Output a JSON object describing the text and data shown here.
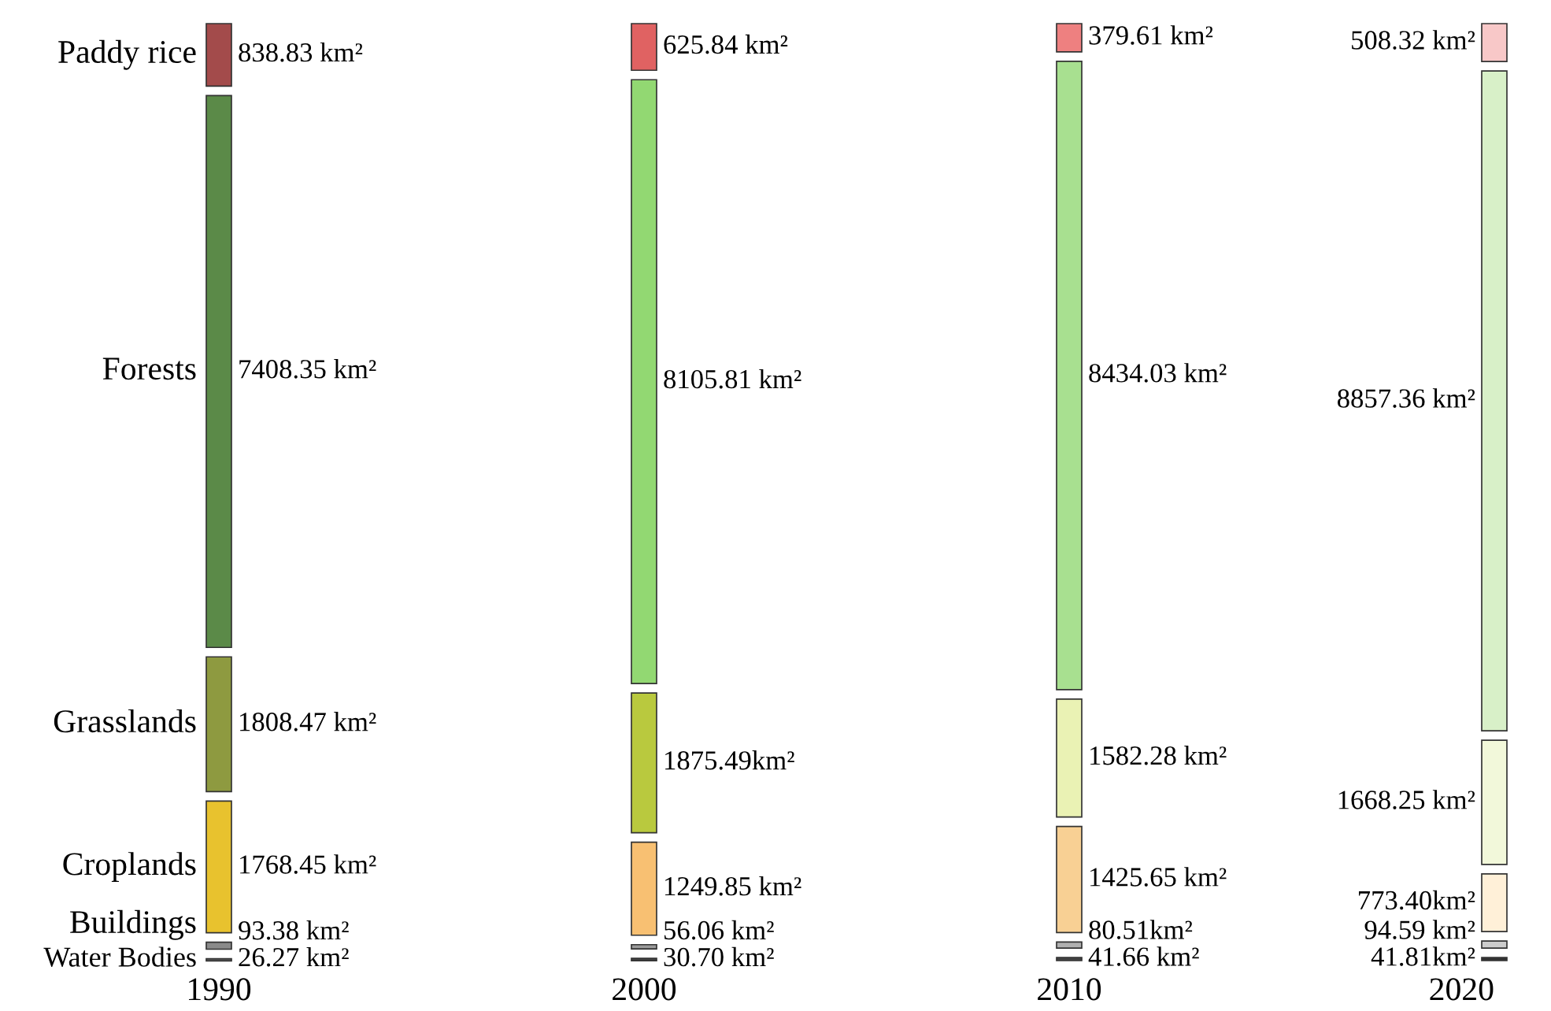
{
  "chart_data": {
    "type": "other",
    "categories": [
      "Paddy rice",
      "Forests",
      "Grasslands",
      "Croplands",
      "Buildings",
      "Water Bodies"
    ],
    "series": [
      {
        "name": "1990",
        "values": [
          838.83,
          7408.35,
          1808.47,
          1768.45,
          93.38,
          26.27
        ],
        "value_labels": [
          "838.83 km²",
          "7408.35 km²",
          "1808.47 km²",
          "1768.45 km²",
          "93.38 km²",
          "26.27 km²"
        ],
        "colors": [
          "#a34b4b",
          "#5b8a48",
          "#8e9a40",
          "#e8c22e",
          "#8a8a8a",
          "#555555"
        ]
      },
      {
        "name": "2000",
        "values": [
          625.84,
          8105.81,
          1875.49,
          1249.85,
          56.06,
          30.7
        ],
        "value_labels": [
          "625.84 km²",
          "8105.81 km²",
          "1875.49km²",
          "1249.85 km²",
          "56.06 km²",
          "30.70 km²"
        ],
        "colors": [
          "#e06262",
          "#92d872",
          "#b9c93e",
          "#f8c072",
          "#9a9a9a",
          "#444444"
        ]
      },
      {
        "name": "2010",
        "values": [
          379.61,
          8434.03,
          1582.28,
          1425.65,
          80.51,
          41.66
        ],
        "value_labels": [
          "379.61 km²",
          "8434.03 km²",
          "1582.28 km²",
          "1425.65 km²",
          "80.51km²",
          "41.66 km²"
        ],
        "colors": [
          "#ee8080",
          "#a8e090",
          "#eaf2b4",
          "#f8d094",
          "#b0b0b0",
          "#444444"
        ]
      },
      {
        "name": "2020",
        "values": [
          508.32,
          8857.36,
          1668.25,
          773.4,
          94.59,
          41.81
        ],
        "value_labels": [
          "508.32 km²",
          "8857.36 km²",
          "1668.25 km²",
          "773.40km²",
          "94.59 km²",
          "41.81km²"
        ],
        "colors": [
          "#f8c8c8",
          "#d8f0c8",
          "#f2f8da",
          "#fff0d8",
          "#cccccc",
          "#333333"
        ]
      }
    ]
  }
}
